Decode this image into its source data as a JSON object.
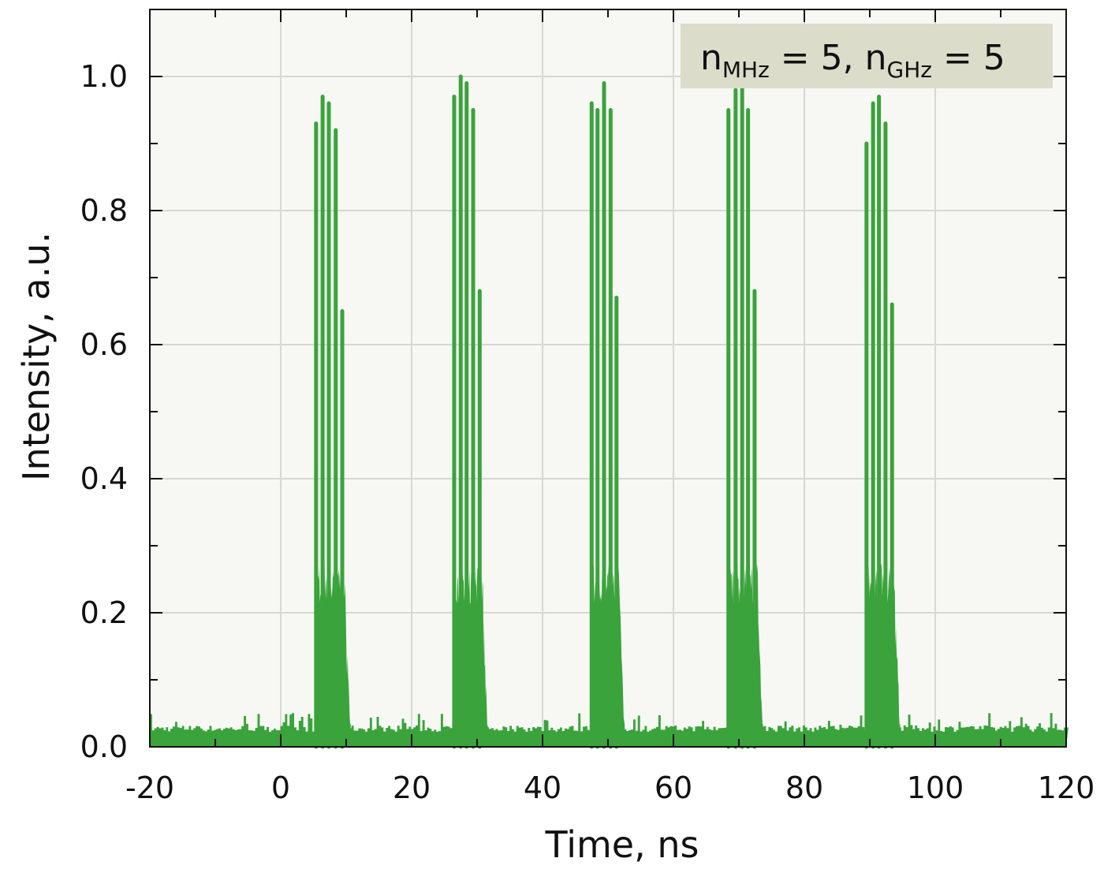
{
  "chart_data": {
    "type": "line",
    "title": "",
    "xlabel": "Time, ns",
    "ylabel": "Intensity, a.u.",
    "xlim": [
      -20,
      120
    ],
    "ylim": [
      0,
      1.1
    ],
    "x_ticks": [
      -20,
      0,
      20,
      40,
      60,
      80,
      100,
      120
    ],
    "x_tick_labels": [
      "-20",
      "0",
      "20",
      "40",
      "60",
      "80",
      "100",
      "120"
    ],
    "y_ticks": [
      0.0,
      0.2,
      0.4,
      0.6,
      0.8,
      1.0
    ],
    "y_tick_labels": [
      "0.0",
      "0.2",
      "0.4",
      "0.6",
      "0.8",
      "1.0"
    ],
    "grid": true,
    "series_color": "#3aa33c",
    "plot_background": "#f7f8f3",
    "legend_background": "#dcdccb",
    "annotation": {
      "n1": "n",
      "sub1": "MHz",
      "mid": " = 5, ",
      "n2": "n",
      "sub2": "GHz",
      "end": " = 5",
      "placement": "top-right"
    },
    "baseline_level": 0.03,
    "inter_peak_level": 0.25,
    "bursts": [
      {
        "peaks_x": [
          5.4,
          6.4,
          7.35,
          8.4,
          9.4
        ],
        "peaks_y": [
          0.93,
          0.97,
          0.96,
          0.92,
          0.65
        ]
      },
      {
        "peaks_x": [
          26.5,
          27.5,
          28.4,
          29.4,
          30.4
        ],
        "peaks_y": [
          0.97,
          1.0,
          0.99,
          0.95,
          0.68
        ]
      },
      {
        "peaks_x": [
          47.5,
          48.4,
          49.4,
          50.4,
          51.3
        ],
        "peaks_y": [
          0.96,
          0.95,
          0.99,
          0.95,
          0.67
        ]
      },
      {
        "peaks_x": [
          68.4,
          69.5,
          70.5,
          71.4,
          72.4
        ],
        "peaks_y": [
          0.95,
          0.98,
          1.0,
          0.95,
          0.68
        ]
      },
      {
        "peaks_x": [
          89.5,
          90.5,
          91.4,
          92.4,
          93.4
        ],
        "peaks_y": [
          0.9,
          0.96,
          0.97,
          0.93,
          0.66
        ]
      }
    ]
  }
}
